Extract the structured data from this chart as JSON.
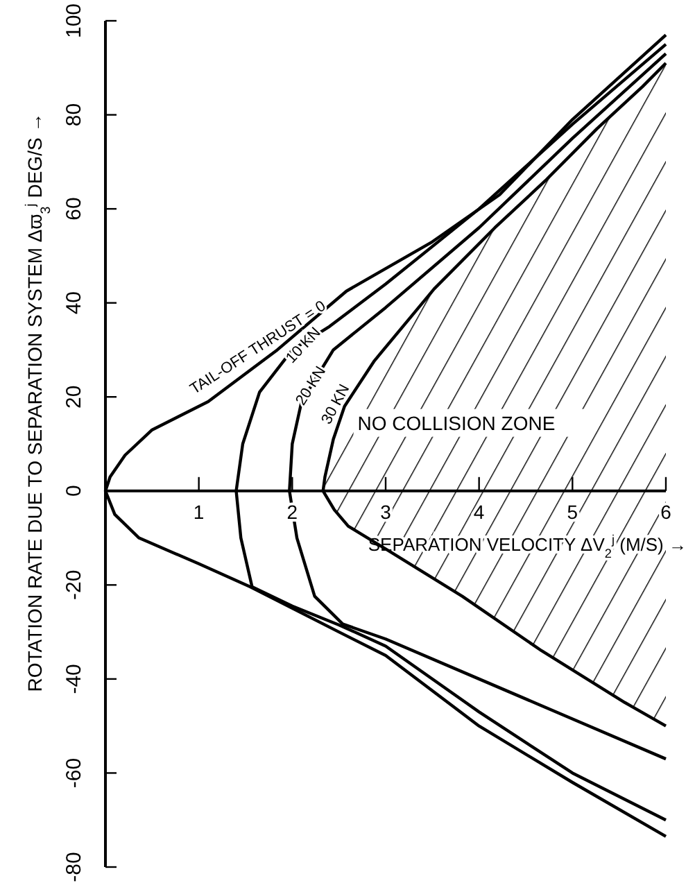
{
  "chart_data": {
    "type": "line",
    "ylabel": "ROTATION RATE DUE TO SEPARATION SYSTEM Δϖ$_{3}$$^{j}$ DEG/S →",
    "xlabel": "SEPARATION VELOCITY ΔV$_{2}$$^{j}$ (M/S) →",
    "xlim": [
      0,
      6
    ],
    "xticks": [
      1,
      2,
      3,
      4,
      5,
      6
    ],
    "ylim": [
      -80,
      100
    ],
    "yticks": [
      -80,
      -60,
      -40,
      -20,
      0,
      20,
      40,
      60,
      80,
      100
    ],
    "grid": false,
    "legend": false,
    "marker": "none",
    "line_style": "solid",
    "annotations": [
      "NO COLLISION ZONE"
    ],
    "series": [
      {
        "name": "TAIL-OFF THRUST = 0",
        "color": "#000000",
        "x": [
          6,
          5,
          4.22,
          3.5,
          2.58,
          1.84,
          1.1,
          0.5,
          0.21,
          0.05,
          0,
          0.1,
          0.36,
          1.0,
          1.55,
          2.5,
          3,
          4,
          5,
          6
        ],
        "values": [
          97,
          79,
          63,
          53,
          42.5,
          30,
          19,
          13,
          7.6,
          3,
          0,
          -5,
          -10,
          -15.5,
          -20.4,
          -30,
          -35,
          -50,
          -62,
          -73.5
        ]
      },
      {
        "name": "10 KN",
        "color": "#000000",
        "x": [
          6,
          5,
          4,
          3,
          2.4,
          2.0,
          1.65,
          1.47,
          1.4,
          1.45,
          1.57,
          2,
          2.5,
          3,
          4,
          5,
          6
        ],
        "values": [
          95,
          78,
          60,
          44,
          35,
          30,
          21,
          10,
          0,
          -10,
          -20.4,
          -24.5,
          -28.5,
          -33,
          -47,
          -60,
          -70
        ]
      },
      {
        "name": "20 KN",
        "color": "#000000",
        "x": [
          6,
          5,
          4,
          3,
          2.44,
          2.1,
          2.0,
          1.97,
          2.05,
          2.24,
          2.54,
          3,
          4,
          5,
          6
        ],
        "values": [
          93,
          75,
          56,
          39,
          30,
          19,
          10,
          0,
          -10,
          -22.4,
          -28.3,
          -31.5,
          -40,
          -48.5,
          -57
        ]
      },
      {
        "name": "30 KN",
        "color": "#000000",
        "x": [
          6,
          5.75,
          5.26,
          4.71,
          4.17,
          3.52,
          2.88,
          2.56,
          2.44,
          2.35,
          2.33,
          2.45,
          2.6,
          3.03,
          3.82,
          4.67,
          5.56,
          6
        ],
        "values": [
          91,
          86,
          77,
          66,
          56,
          43,
          27.7,
          18,
          11,
          3,
          0,
          -4,
          -7.5,
          -12.7,
          -22.4,
          -34,
          -45,
          -50
        ]
      }
    ]
  }
}
